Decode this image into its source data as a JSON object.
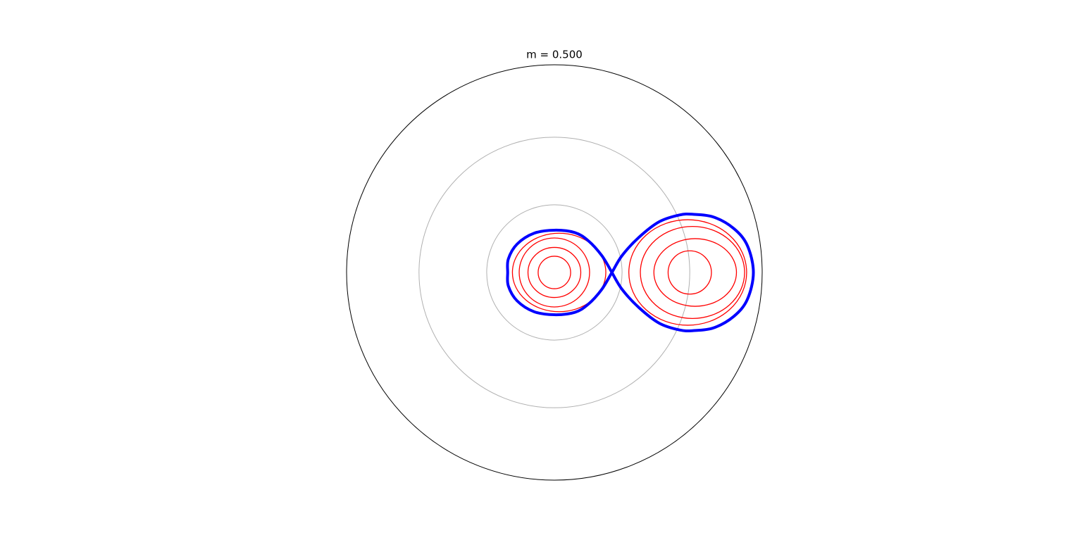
{
  "chart_data": {
    "type": "polar-contour",
    "title": "m = 0.500",
    "rlim": [
      0,
      3.07
    ],
    "rticks": [
      1,
      2
    ],
    "grid": true,
    "separatrix": {
      "color": "#0000ff",
      "x": [
        0.85,
        0.7,
        0.5,
        0.3,
        0,
        -0.3,
        -0.55,
        -0.68,
        -0.69,
        -0.68,
        -0.55,
        -0.3,
        0,
        0.3,
        0.5,
        0.7,
        0.85,
        1.0,
        1.25,
        1.55,
        1.85,
        2.05,
        2.35,
        2.65,
        2.85,
        2.94,
        2.85,
        2.65,
        2.35,
        2.05,
        1.85,
        1.55,
        1.25,
        1.0,
        0.85
      ],
      "y": [
        0,
        0.25,
        0.47,
        0.59,
        0.625,
        0.58,
        0.42,
        0.2,
        0,
        -0.2,
        -0.42,
        -0.58,
        -0.625,
        -0.59,
        -0.47,
        -0.25,
        0,
        0.25,
        0.52,
        0.75,
        0.85,
        0.86,
        0.82,
        0.65,
        0.4,
        0,
        -0.4,
        -0.65,
        -0.82,
        -0.86,
        -0.85,
        -0.75,
        -0.52,
        -0.25,
        0
      ]
    },
    "contours": {
      "color": "#ff0000",
      "items": [
        {
          "cx": 0,
          "rx": 0.24,
          "ry": 0.24
        },
        {
          "cx": 0,
          "rx": 0.39,
          "ry": 0.37
        },
        {
          "cx": 0,
          "rx": 0.52,
          "ry": 0.51
        },
        {
          "cx": 0.07,
          "rx": 0.69,
          "ry": 0.58
        },
        {
          "cx": 2.0,
          "rx": 0.32,
          "ry": 0.32
        },
        {
          "cx": 2.08,
          "rx": 0.61,
          "ry": 0.5
        },
        {
          "cx": 2.04,
          "rx": 0.77,
          "ry": 0.68
        },
        {
          "cx": 1.97,
          "rx": 0.87,
          "ry": 0.78
        }
      ]
    }
  }
}
